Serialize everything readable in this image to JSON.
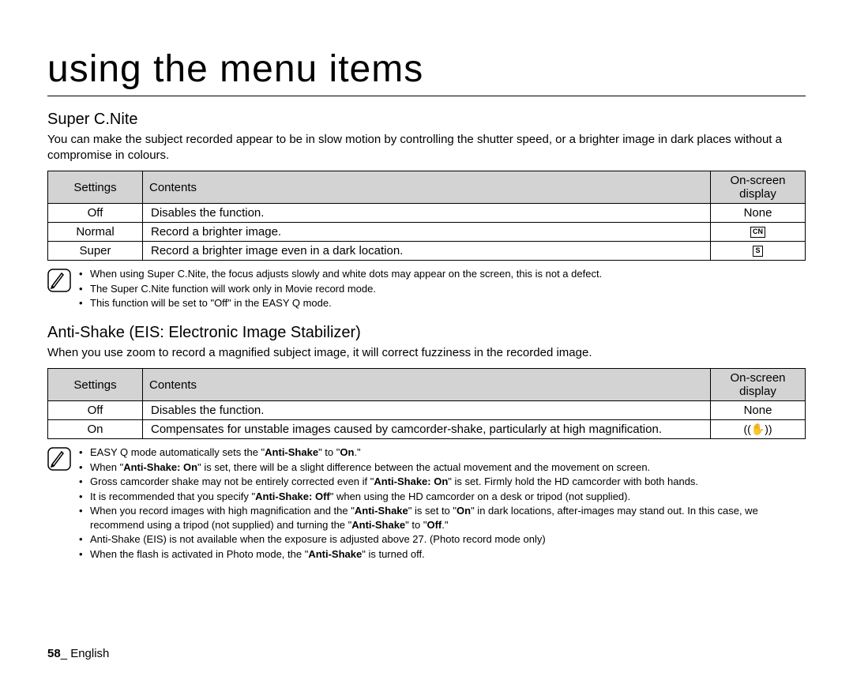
{
  "page": {
    "title": "using the menu items",
    "number": "58",
    "language": "English"
  },
  "section1": {
    "title": "Super C.Nite",
    "desc": "You can make the subject recorded appear to be in slow motion by controlling the shutter speed, or a brighter image in dark places without a compromise in colours.",
    "headers": {
      "settings": "Settings",
      "contents": "Contents",
      "display": "On-screen display"
    },
    "rows": [
      {
        "setting": "Off",
        "content": "Disables the function.",
        "display": "None",
        "icon": ""
      },
      {
        "setting": "Normal",
        "content": "Record a brighter image.",
        "display": "",
        "icon": "CN"
      },
      {
        "setting": "Super",
        "content": "Record a brighter image even in a dark location.",
        "display": "",
        "icon": "S"
      }
    ],
    "notes": [
      "When using Super C.Nite, the focus adjusts slowly and white dots may appear on the screen, this is not a defect.",
      "The Super C.Nite function will work only in Movie record mode.",
      "This function will be set to \"Off\" in the EASY Q mode."
    ]
  },
  "section2": {
    "title": "Anti-Shake (EIS: Electronic Image Stabilizer)",
    "desc": "When you use zoom to record a magnified subject image, it will correct fuzziness in the recorded image.",
    "headers": {
      "settings": "Settings",
      "contents": "Contents",
      "display": "On-screen display"
    },
    "rows": [
      {
        "setting": "Off",
        "content": "Disables the function.",
        "display": "None",
        "icon": ""
      },
      {
        "setting": "On",
        "content": "Compensates for unstable images caused by camcorder-shake, particularly at high magnification.",
        "display": "",
        "icon": "hand"
      }
    ],
    "notes_html": [
      "EASY Q mode automatically sets the \"<b>Anti-Shake</b>\" to \"<b>On</b>.\"",
      "When \"<b>Anti-Shake: On</b>\" is set, there will be a slight difference between the actual movement and the movement on screen.",
      "Gross camcorder shake may not be entirely corrected even if \"<b>Anti-Shake: On</b>\" is set. Firmly hold the HD camcorder with both hands.",
      "It is recommended that you specify \"<b>Anti-Shake: Off</b>\" when using the HD camcorder on a desk or tripod (not supplied).",
      "When you record images with high magnification and the \"<b>Anti-Shake</b>\" is set to \"<b>On</b>\" in dark locations, after-images may stand out. In this case, we recommend using a tripod (not supplied) and turning the \"<b>Anti-Shake</b>\" to \"<b>Off</b>.\"",
      "Anti-Shake (EIS) is not available when the exposure is adjusted above 27. (Photo record mode only)",
      "When the flash is activated in Photo mode, the \"<b>Anti-Shake</b>\" is turned off."
    ]
  }
}
